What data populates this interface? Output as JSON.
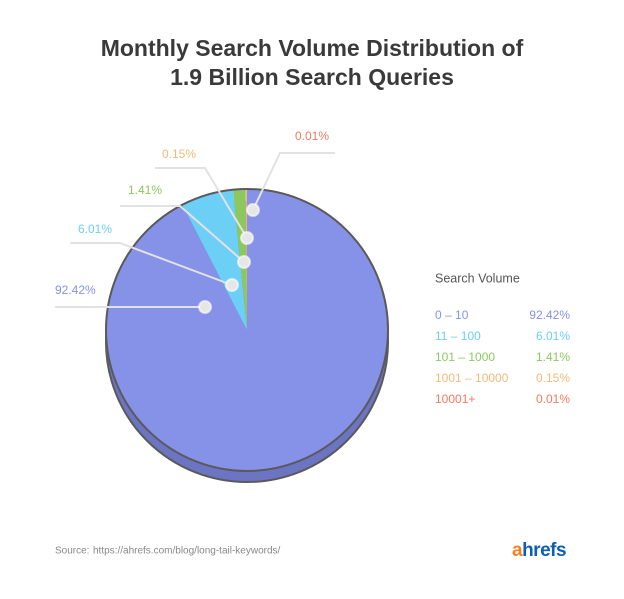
{
  "chart_data": {
    "type": "pie",
    "title": "Monthly Search Volume Distribution of 1.9 Billion Search Queries",
    "legend_title": "Search Volume",
    "categories": [
      "0 – 10",
      "11 – 100",
      "101 – 1000",
      "1001 – 10000",
      "10001+"
    ],
    "values": [
      92.42,
      6.01,
      1.41,
      0.15,
      0.01
    ],
    "value_labels": [
      "92.42%",
      "6.01%",
      "1.41%",
      "0.15%",
      "0.01%"
    ],
    "colors": [
      "#8592e8",
      "#6ccff6",
      "#8dc85f",
      "#f5b97a",
      "#f07b5e"
    ],
    "legend": "right"
  },
  "footer": {
    "source_label": "Source:",
    "source_url": "https://ahrefs.com/blog/long-tail-keywords/",
    "logo": "ahrefs"
  }
}
